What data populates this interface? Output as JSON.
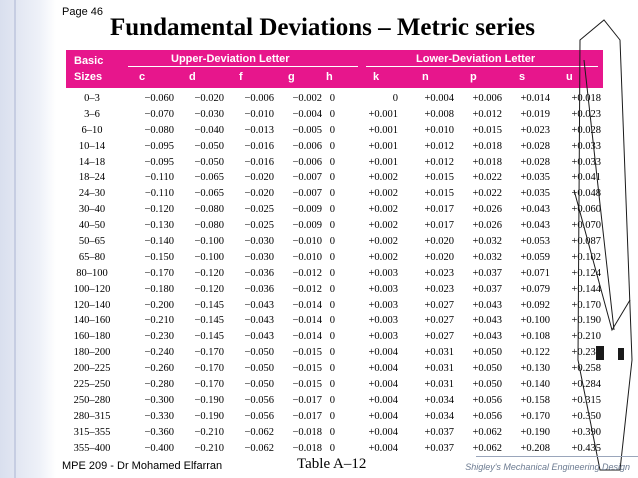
{
  "page_label": "Page 46",
  "title": "Fundamental Deviations – Metric series",
  "header": {
    "basic": "Basic",
    "sizes": "Sizes",
    "upper_group": "Upper-Deviation Letter",
    "lower_group": "Lower-Deviation Letter",
    "cols": [
      "c",
      "d",
      "f",
      "g",
      "h",
      "k",
      "n",
      "p",
      "s",
      "u"
    ]
  },
  "rows": [
    {
      "size": "0–3",
      "vals": [
        "−0.060",
        "−0.020",
        "−0.006",
        "−0.002",
        "0",
        "0",
        "+0.004",
        "+0.006",
        "+0.014",
        "+0.018"
      ]
    },
    {
      "size": "3–6",
      "vals": [
        "−0.070",
        "−0.030",
        "−0.010",
        "−0.004",
        "0",
        "+0.001",
        "+0.008",
        "+0.012",
        "+0.019",
        "+0.023"
      ]
    },
    {
      "size": "6–10",
      "vals": [
        "−0.080",
        "−0.040",
        "−0.013",
        "−0.005",
        "0",
        "+0.001",
        "+0.010",
        "+0.015",
        "+0.023",
        "+0.028"
      ]
    },
    {
      "size": "10–14",
      "vals": [
        "−0.095",
        "−0.050",
        "−0.016",
        "−0.006",
        "0",
        "+0.001",
        "+0.012",
        "+0.018",
        "+0.028",
        "+0.033"
      ]
    },
    {
      "size": "14–18",
      "vals": [
        "−0.095",
        "−0.050",
        "−0.016",
        "−0.006",
        "0",
        "+0.001",
        "+0.012",
        "+0.018",
        "+0.028",
        "+0.033"
      ]
    },
    {
      "size": "18–24",
      "vals": [
        "−0.110",
        "−0.065",
        "−0.020",
        "−0.007",
        "0",
        "+0.002",
        "+0.015",
        "+0.022",
        "+0.035",
        "+0.041"
      ]
    },
    {
      "size": "24–30",
      "vals": [
        "−0.110",
        "−0.065",
        "−0.020",
        "−0.007",
        "0",
        "+0.002",
        "+0.015",
        "+0.022",
        "+0.035",
        "+0.048"
      ]
    },
    {
      "size": "30–40",
      "vals": [
        "−0.120",
        "−0.080",
        "−0.025",
        "−0.009",
        "0",
        "+0.002",
        "+0.017",
        "+0.026",
        "+0.043",
        "+0.060"
      ]
    },
    {
      "size": "40–50",
      "vals": [
        "−0.130",
        "−0.080",
        "−0.025",
        "−0.009",
        "0",
        "+0.002",
        "+0.017",
        "+0.026",
        "+0.043",
        "+0.070"
      ]
    },
    {
      "size": "50–65",
      "vals": [
        "−0.140",
        "−0.100",
        "−0.030",
        "−0.010",
        "0",
        "+0.002",
        "+0.020",
        "+0.032",
        "+0.053",
        "+0.087"
      ]
    },
    {
      "size": "65–80",
      "vals": [
        "−0.150",
        "−0.100",
        "−0.030",
        "−0.010",
        "0",
        "+0.002",
        "+0.020",
        "+0.032",
        "+0.059",
        "+0.102"
      ]
    },
    {
      "size": "80–100",
      "vals": [
        "−0.170",
        "−0.120",
        "−0.036",
        "−0.012",
        "0",
        "+0.003",
        "+0.023",
        "+0.037",
        "+0.071",
        "+0.124"
      ]
    },
    {
      "size": "100–120",
      "vals": [
        "−0.180",
        "−0.120",
        "−0.036",
        "−0.012",
        "0",
        "+0.003",
        "+0.023",
        "+0.037",
        "+0.079",
        "+0.144"
      ]
    },
    {
      "size": "120–140",
      "vals": [
        "−0.200",
        "−0.145",
        "−0.043",
        "−0.014",
        "0",
        "+0.003",
        "+0.027",
        "+0.043",
        "+0.092",
        "+0.170"
      ]
    },
    {
      "size": "140–160",
      "vals": [
        "−0.210",
        "−0.145",
        "−0.043",
        "−0.014",
        "0",
        "+0.003",
        "+0.027",
        "+0.043",
        "+0.100",
        "+0.190"
      ]
    },
    {
      "size": "160–180",
      "vals": [
        "−0.230",
        "−0.145",
        "−0.043",
        "−0.014",
        "0",
        "+0.003",
        "+0.027",
        "+0.043",
        "+0.108",
        "+0.210"
      ]
    },
    {
      "size": "180–200",
      "vals": [
        "−0.240",
        "−0.170",
        "−0.050",
        "−0.015",
        "0",
        "+0.004",
        "+0.031",
        "+0.050",
        "+0.122",
        "+0.236"
      ]
    },
    {
      "size": "200–225",
      "vals": [
        "−0.260",
        "−0.170",
        "−0.050",
        "−0.015",
        "0",
        "+0.004",
        "+0.031",
        "+0.050",
        "+0.130",
        "+0.258"
      ]
    },
    {
      "size": "225–250",
      "vals": [
        "−0.280",
        "−0.170",
        "−0.050",
        "−0.015",
        "0",
        "+0.004",
        "+0.031",
        "+0.050",
        "+0.140",
        "+0.284"
      ]
    },
    {
      "size": "250–280",
      "vals": [
        "−0.300",
        "−0.190",
        "−0.056",
        "−0.017",
        "0",
        "+0.004",
        "+0.034",
        "+0.056",
        "+0.158",
        "+0.315"
      ]
    },
    {
      "size": "280–315",
      "vals": [
        "−0.330",
        "−0.190",
        "−0.056",
        "−0.017",
        "0",
        "+0.004",
        "+0.034",
        "+0.056",
        "+0.170",
        "+0.350"
      ]
    },
    {
      "size": "315–355",
      "vals": [
        "−0.360",
        "−0.210",
        "−0.062",
        "−0.018",
        "0",
        "+0.004",
        "+0.037",
        "+0.062",
        "+0.190",
        "+0.390"
      ]
    },
    {
      "size": "355–400",
      "vals": [
        "−0.400",
        "−0.210",
        "−0.062",
        "−0.018",
        "0",
        "+0.004",
        "+0.037",
        "+0.062",
        "+0.208",
        "+0.435"
      ]
    }
  ],
  "footer": {
    "left": "MPE  209 - Dr Mohamed Elfarran",
    "center": "Table A–12",
    "right": "Shigley's Mechanical Engineering Design"
  },
  "colors": {
    "header_bg": "#e7168c",
    "header_text": "#ffffff",
    "footer_right_text": "#6b7a90"
  }
}
